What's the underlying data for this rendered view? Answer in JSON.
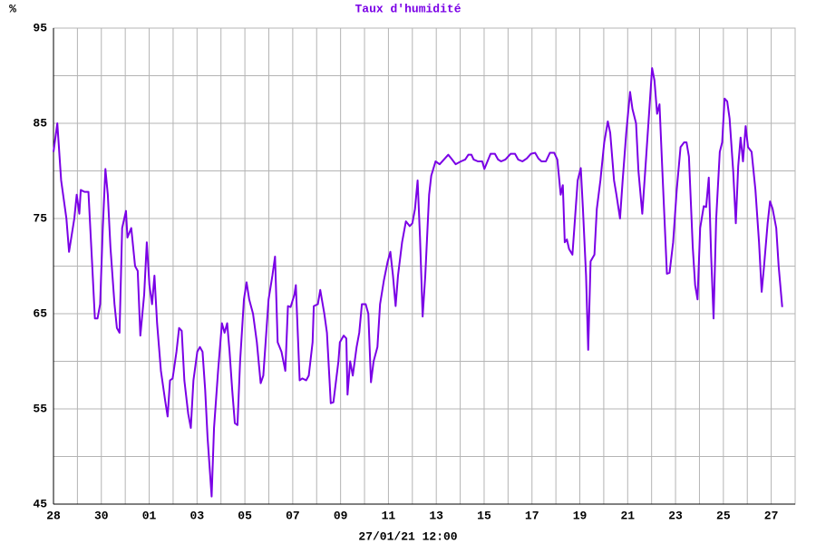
{
  "chart_data": {
    "type": "line",
    "title": "Taux d'humidité",
    "ylabel": "%",
    "xlabel": "27/01/21 12:00",
    "color": "#7a00e6",
    "grid": true,
    "xlim": [
      0,
      31
    ],
    "ylim": [
      45,
      95
    ],
    "xticks": [
      {
        "value": 0,
        "label": "28"
      },
      {
        "value": 2,
        "label": "30"
      },
      {
        "value": 4,
        "label": "01"
      },
      {
        "value": 6,
        "label": "03"
      },
      {
        "value": 8,
        "label": "05"
      },
      {
        "value": 10,
        "label": "07"
      },
      {
        "value": 12,
        "label": "09"
      },
      {
        "value": 14,
        "label": "11"
      },
      {
        "value": 16,
        "label": "13"
      },
      {
        "value": 18,
        "label": "15"
      },
      {
        "value": 20,
        "label": "17"
      },
      {
        "value": 22,
        "label": "19"
      },
      {
        "value": 24,
        "label": "21"
      },
      {
        "value": 26,
        "label": "23"
      },
      {
        "value": 28,
        "label": "25"
      },
      {
        "value": 30,
        "label": "27"
      }
    ],
    "xminorticks": [
      1,
      3,
      5,
      7,
      9,
      11,
      13,
      15,
      17,
      19,
      21,
      23,
      25,
      27,
      29
    ],
    "yticks": [
      45,
      55,
      65,
      75,
      85,
      95
    ],
    "yminorticks": [
      50,
      60,
      70,
      80,
      90
    ],
    "x": [
      0,
      0.16,
      0.32,
      0.54,
      0.65,
      0.87,
      0.97,
      1.08,
      1.14,
      1.3,
      1.46,
      1.62,
      1.73,
      1.84,
      1.95,
      2.06,
      2.17,
      2.27,
      2.38,
      2.55,
      2.65,
      2.76,
      2.87,
      3.03,
      3.09,
      3.25,
      3.41,
      3.52,
      3.63,
      3.79,
      3.9,
      4.01,
      4.12,
      4.22,
      4.33,
      4.49,
      4.66,
      4.77,
      4.87,
      4.98,
      5.14,
      5.25,
      5.36,
      5.47,
      5.63,
      5.74,
      5.85,
      6.01,
      6.12,
      6.23,
      6.34,
      6.44,
      6.55,
      6.61,
      6.71,
      6.88,
      7.04,
      7.15,
      7.26,
      7.36,
      7.47,
      7.58,
      7.69,
      7.8,
      7.96,
      8.07,
      8.18,
      8.34,
      8.5,
      8.66,
      8.77,
      8.99,
      9.15,
      9.26,
      9.37,
      9.53,
      9.69,
      9.8,
      9.91,
      10.07,
      10.13,
      10.29,
      10.4,
      10.56,
      10.67,
      10.83,
      10.88,
      11.05,
      11.15,
      11.32,
      11.43,
      11.59,
      11.7,
      11.91,
      11.97,
      12.13,
      12.24,
      12.29,
      12.4,
      12.51,
      12.67,
      12.78,
      12.89,
      13.05,
      13.16,
      13.27,
      13.38,
      13.54,
      13.65,
      13.81,
      13.97,
      14.08,
      14.19,
      14.3,
      14.4,
      14.57,
      14.73,
      14.89,
      15.0,
      15.11,
      15.22,
      15.32,
      15.43,
      15.54,
      15.7,
      15.79,
      15.97,
      16.14,
      16.32,
      16.5,
      16.63,
      16.81,
      17.03,
      17.21,
      17.34,
      17.47,
      17.56,
      17.74,
      17.92,
      18.01,
      18.14,
      18.27,
      18.45,
      18.58,
      18.71,
      18.89,
      19.11,
      19.29,
      19.42,
      19.6,
      19.78,
      19.96,
      20.13,
      20.27,
      20.4,
      20.58,
      20.75,
      20.93,
      21.06,
      21.2,
      21.29,
      21.37,
      21.46,
      21.55,
      21.69,
      21.77,
      21.91,
      22.04,
      22.13,
      22.26,
      22.35,
      22.45,
      22.61,
      22.71,
      22.86,
      23.02,
      23.17,
      23.27,
      23.43,
      23.53,
      23.68,
      23.79,
      23.94,
      24.1,
      24.2,
      24.35,
      24.45,
      24.61,
      24.76,
      24.92,
      25.02,
      25.12,
      25.23,
      25.33,
      25.45,
      25.64,
      25.75,
      25.9,
      26.05,
      26.21,
      26.36,
      26.46,
      26.56,
      26.72,
      26.82,
      26.92,
      27.03,
      27.18,
      27.28,
      27.39,
      27.49,
      27.59,
      27.7,
      27.85,
      27.95,
      28.05,
      28.16,
      28.26,
      28.41,
      28.52,
      28.62,
      28.72,
      28.82,
      28.93,
      29.03,
      29.18,
      29.34,
      29.49,
      29.6,
      29.7,
      29.85,
      29.95,
      30.06,
      30.21,
      30.31,
      30.46
    ],
    "values": [
      82,
      85,
      79,
      75,
      71.5,
      75,
      77.5,
      75.5,
      78,
      77.8,
      77.8,
      70,
      64.5,
      64.5,
      66,
      74,
      80.2,
      77.5,
      72,
      66,
      63.5,
      63,
      74,
      75.8,
      73,
      74,
      70,
      69.5,
      62.7,
      67,
      72.5,
      68,
      66,
      69,
      64,
      59,
      56,
      54.2,
      58,
      58.2,
      61,
      63.5,
      63.2,
      58,
      54.5,
      53,
      58,
      61,
      61.5,
      61,
      57,
      52,
      48,
      45.8,
      53,
      59,
      64,
      63,
      64,
      61,
      57,
      53.5,
      53.3,
      60,
      66.5,
      68.3,
      66.5,
      65,
      62,
      57.7,
      58.5,
      66.5,
      69,
      71,
      62,
      61,
      59,
      65.8,
      65.7,
      67,
      68,
      58,
      58.2,
      58,
      58.5,
      62,
      65.8,
      66,
      67.5,
      65,
      63,
      55.6,
      55.7,
      60,
      62,
      62.7,
      62.4,
      56.5,
      60,
      58.5,
      61.5,
      63,
      66,
      66,
      65,
      57.8,
      60,
      61.5,
      66,
      68.5,
      70.5,
      71.5,
      69,
      65.8,
      69,
      72.5,
      74.7,
      74.2,
      74.5,
      76,
      79,
      73,
      64.7,
      69,
      77.5,
      79.5,
      81,
      80.7,
      81.2,
      81.7,
      81.3,
      80.7,
      81,
      81.2,
      81.7,
      81.7,
      81.2,
      81,
      81,
      80.2,
      81,
      81.8,
      81.8,
      81.2,
      81,
      81.2,
      81.8,
      81.8,
      81.2,
      81,
      81.3,
      81.8,
      81.9,
      81.3,
      81,
      81,
      81.9,
      81.9,
      81.2,
      77.5,
      78.5,
      72.5,
      72.8,
      71.8,
      71.2,
      74,
      79,
      80.3,
      76,
      69,
      61.2,
      70.5,
      71.2,
      76,
      79,
      83,
      85.2,
      84,
      79,
      77.5,
      75,
      79,
      84,
      88.3,
      86.5,
      85,
      80,
      75.5,
      81,
      87,
      90.8,
      89.5,
      86,
      87,
      80,
      69.2,
      69.3,
      72.5,
      78,
      82.5,
      83,
      83,
      81.5,
      72,
      68,
      66.5,
      74,
      76.3,
      76.2,
      79.3,
      71,
      64.5,
      75,
      82,
      83,
      87.6,
      87.3,
      85.5,
      80,
      74.5,
      80.5,
      83.5,
      81,
      84.7,
      82.5,
      82,
      78,
      72.5,
      67.3,
      70,
      74.5,
      76.8,
      76,
      74,
      70,
      65.7
    ]
  }
}
